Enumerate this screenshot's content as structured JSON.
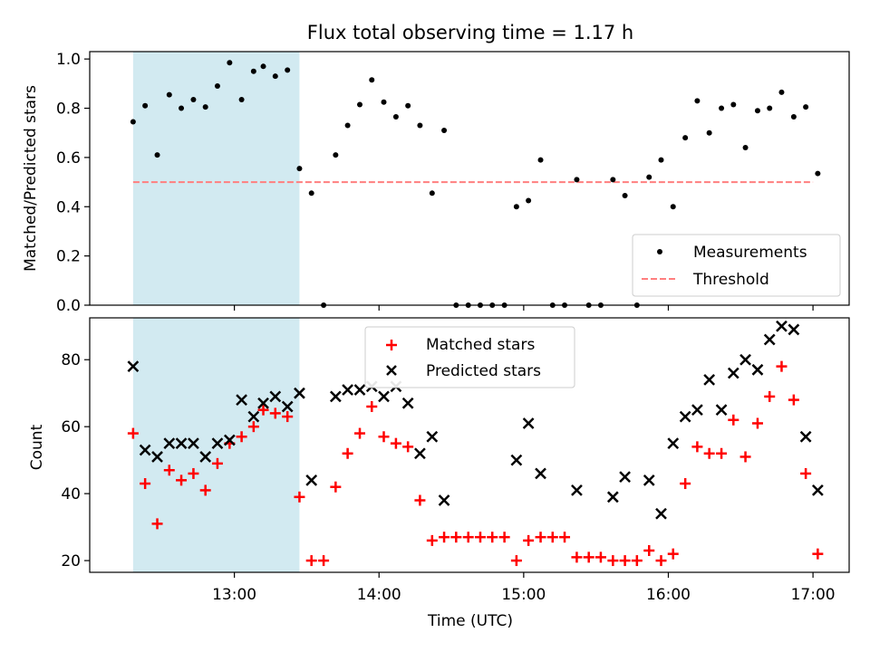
{
  "title": "Flux total observing time = 1.17 h",
  "colors": {
    "shade": "#add8e6",
    "measurement": "#000000",
    "threshold": "#ff7f7f",
    "matched": "#ff0000",
    "predicted": "#000000"
  },
  "shaded_interval_hours": [
    12.3,
    13.45
  ],
  "chart_data": [
    {
      "type": "scatter",
      "ylabel": "Matched/Predicted stars",
      "ylim": [
        0,
        1.03
      ],
      "yticks": [
        0.0,
        0.2,
        0.4,
        0.6,
        0.8,
        1.0
      ],
      "ytick_labels": [
        "0.0",
        "0.2",
        "0.4",
        "0.6",
        "0.8",
        "1.0"
      ],
      "legend": {
        "placement": "lower-right",
        "entries": [
          "Measurements",
          "Threshold"
        ]
      },
      "threshold": 0.5,
      "threshold_x_range_hours": [
        12.3,
        17.0
      ],
      "series": [
        {
          "name": "Measurements",
          "marker": "dot",
          "points": [
            [
              12.3,
              0.745
            ],
            [
              12.383,
              0.81
            ],
            [
              12.467,
              0.61
            ],
            [
              12.55,
              0.855
            ],
            [
              12.633,
              0.8
            ],
            [
              12.717,
              0.835
            ],
            [
              12.8,
              0.805
            ],
            [
              12.883,
              0.89
            ],
            [
              12.967,
              0.985
            ],
            [
              13.05,
              0.835
            ],
            [
              13.133,
              0.95
            ],
            [
              13.2,
              0.97
            ],
            [
              13.283,
              0.93
            ],
            [
              13.367,
              0.955
            ],
            [
              13.45,
              0.555
            ],
            [
              13.533,
              0.455
            ],
            [
              13.617,
              0.0
            ],
            [
              13.7,
              0.61
            ],
            [
              13.783,
              0.73
            ],
            [
              13.867,
              0.815
            ],
            [
              13.95,
              0.915
            ],
            [
              14.033,
              0.825
            ],
            [
              14.117,
              0.765
            ],
            [
              14.2,
              0.81
            ],
            [
              14.283,
              0.73
            ],
            [
              14.367,
              0.455
            ],
            [
              14.45,
              0.71
            ],
            [
              14.533,
              0.0
            ],
            [
              14.617,
              0.0
            ],
            [
              14.7,
              0.0
            ],
            [
              14.783,
              0.0
            ],
            [
              14.867,
              0.0
            ],
            [
              14.95,
              0.4
            ],
            [
              15.033,
              0.425
            ],
            [
              15.117,
              0.59
            ],
            [
              15.2,
              0.0
            ],
            [
              15.283,
              0.0
            ],
            [
              15.367,
              0.51
            ],
            [
              15.45,
              0.0
            ],
            [
              15.533,
              0.0
            ],
            [
              15.617,
              0.51
            ],
            [
              15.7,
              0.445
            ],
            [
              15.783,
              0.0
            ],
            [
              15.867,
              0.52
            ],
            [
              15.95,
              0.59
            ],
            [
              16.033,
              0.4
            ],
            [
              16.117,
              0.68
            ],
            [
              16.2,
              0.83
            ],
            [
              16.283,
              0.7
            ],
            [
              16.367,
              0.8
            ],
            [
              16.45,
              0.815
            ],
            [
              16.533,
              0.64
            ],
            [
              16.617,
              0.79
            ],
            [
              16.7,
              0.8
            ],
            [
              16.783,
              0.865
            ],
            [
              16.867,
              0.765
            ],
            [
              16.95,
              0.805
            ],
            [
              17.033,
              0.535
            ]
          ]
        },
        {
          "name": "Threshold",
          "line_style": "dashed"
        }
      ]
    },
    {
      "type": "scatter",
      "xlabel": "Time (UTC)",
      "ylabel": "Count",
      "ylim": [
        16.5,
        92.5
      ],
      "xlim_hours": [
        12.0,
        17.25
      ],
      "yticks": [
        20,
        40,
        60,
        80
      ],
      "ytick_labels": [
        "20",
        "40",
        "60",
        "80"
      ],
      "xticks_hours": [
        13,
        14,
        15,
        16,
        17
      ],
      "xtick_labels": [
        "13:00",
        "14:00",
        "15:00",
        "16:00",
        "17:00"
      ],
      "legend": {
        "placement": "upper-center",
        "entries": [
          "Matched stars",
          "Predicted stars"
        ]
      },
      "series": [
        {
          "name": "Matched stars",
          "marker": "plus",
          "points": [
            [
              12.3,
              58
            ],
            [
              12.383,
              43
            ],
            [
              12.467,
              31
            ],
            [
              12.55,
              47
            ],
            [
              12.633,
              44
            ],
            [
              12.717,
              46
            ],
            [
              12.8,
              41
            ],
            [
              12.883,
              49
            ],
            [
              12.967,
              55
            ],
            [
              13.05,
              57
            ],
            [
              13.133,
              60
            ],
            [
              13.2,
              65
            ],
            [
              13.283,
              64
            ],
            [
              13.367,
              63
            ],
            [
              13.45,
              39
            ],
            [
              13.533,
              20
            ],
            [
              13.617,
              20
            ],
            [
              13.7,
              42
            ],
            [
              13.783,
              52
            ],
            [
              13.867,
              58
            ],
            [
              13.95,
              66
            ],
            [
              14.033,
              57
            ],
            [
              14.117,
              55
            ],
            [
              14.2,
              54
            ],
            [
              14.283,
              38
            ],
            [
              14.367,
              26
            ],
            [
              14.45,
              27
            ],
            [
              14.533,
              27
            ],
            [
              14.617,
              27
            ],
            [
              14.7,
              27
            ],
            [
              14.783,
              27
            ],
            [
              14.867,
              27
            ],
            [
              14.95,
              20
            ],
            [
              15.033,
              26
            ],
            [
              15.117,
              27
            ],
            [
              15.2,
              27
            ],
            [
              15.283,
              27
            ],
            [
              15.367,
              21
            ],
            [
              15.45,
              21
            ],
            [
              15.533,
              21
            ],
            [
              15.617,
              20
            ],
            [
              15.7,
              20
            ],
            [
              15.783,
              20
            ],
            [
              15.867,
              23
            ],
            [
              15.95,
              20
            ],
            [
              16.033,
              22
            ],
            [
              16.117,
              43
            ],
            [
              16.2,
              54
            ],
            [
              16.283,
              52
            ],
            [
              16.367,
              52
            ],
            [
              16.45,
              62
            ],
            [
              16.533,
              51
            ],
            [
              16.617,
              61
            ],
            [
              16.7,
              69
            ],
            [
              16.783,
              78
            ],
            [
              16.867,
              68
            ],
            [
              16.95,
              46
            ],
            [
              17.033,
              22
            ]
          ]
        },
        {
          "name": "Predicted stars",
          "marker": "cross",
          "points": [
            [
              12.3,
              78
            ],
            [
              12.383,
              53
            ],
            [
              12.467,
              51
            ],
            [
              12.55,
              55
            ],
            [
              12.633,
              55
            ],
            [
              12.717,
              55
            ],
            [
              12.8,
              51
            ],
            [
              12.883,
              55
            ],
            [
              12.967,
              56
            ],
            [
              13.05,
              68
            ],
            [
              13.133,
              63
            ],
            [
              13.2,
              67
            ],
            [
              13.283,
              69
            ],
            [
              13.367,
              66
            ],
            [
              13.45,
              70
            ],
            [
              13.533,
              44
            ],
            [
              13.7,
              69
            ],
            [
              13.783,
              71
            ],
            [
              13.867,
              71
            ],
            [
              13.95,
              72
            ],
            [
              14.033,
              69
            ],
            [
              14.117,
              72
            ],
            [
              14.2,
              67
            ],
            [
              14.283,
              52
            ],
            [
              14.367,
              57
            ],
            [
              14.45,
              38
            ],
            [
              14.95,
              50
            ],
            [
              15.033,
              61
            ],
            [
              15.117,
              46
            ],
            [
              15.367,
              41
            ],
            [
              15.617,
              39
            ],
            [
              15.7,
              45
            ],
            [
              15.867,
              44
            ],
            [
              15.95,
              34
            ],
            [
              16.033,
              55
            ],
            [
              16.117,
              63
            ],
            [
              16.2,
              65
            ],
            [
              16.283,
              74
            ],
            [
              16.367,
              65
            ],
            [
              16.45,
              76
            ],
            [
              16.533,
              80
            ],
            [
              16.617,
              77
            ],
            [
              16.7,
              86
            ],
            [
              16.783,
              90
            ],
            [
              16.867,
              89
            ],
            [
              16.95,
              57
            ],
            [
              17.033,
              41
            ]
          ]
        }
      ]
    }
  ]
}
